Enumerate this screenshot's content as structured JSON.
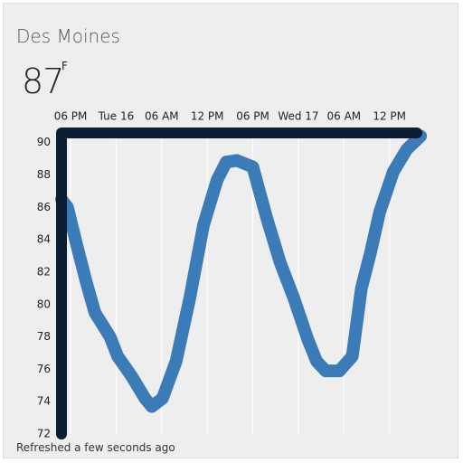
{
  "header": {
    "title": "Des Moines",
    "temperature": "87",
    "unit": "F"
  },
  "chart_data": {
    "type": "line",
    "x": [
      -1.2,
      -0.4,
      0.8,
      2.0,
      3.2,
      4.4,
      5.2,
      6.2,
      8.0,
      9.8,
      10.7,
      12.1,
      13.9,
      15.7,
      17.5,
      19.3,
      20.5,
      21.9,
      24.0,
      25.8,
      27.6,
      29.4,
      31.2,
      32.4,
      33.6,
      35.4,
      37.1,
      38.3,
      39.5,
      40.7,
      42.5,
      44.3,
      46.1
    ],
    "series": [
      {
        "color": "#3b7bb8",
        "values": [
          86.5,
          86.0,
          83.7,
          81.5,
          79.5,
          78.6,
          78.0,
          76.8,
          75.6,
          74.2,
          73.7,
          74.2,
          76.5,
          80.4,
          84.9,
          87.7,
          88.8,
          88.9,
          88.5,
          85.4,
          82.6,
          80.4,
          77.9,
          76.5,
          75.9,
          75.9,
          76.8,
          81.0,
          83.2,
          85.7,
          88.2,
          89.6,
          90.4
        ]
      }
    ],
    "xlim": [
      -1.2,
      46.8
    ],
    "xticks": [
      {
        "value": 0,
        "label": "06 PM"
      },
      {
        "value": 6,
        "label": "Tue 16"
      },
      {
        "value": 12,
        "label": "06 AM"
      },
      {
        "value": 18,
        "label": "12 PM"
      },
      {
        "value": 24,
        "label": "06 PM"
      },
      {
        "value": 30,
        "label": "Wed 17"
      },
      {
        "value": 36,
        "label": "06 AM"
      },
      {
        "value": 42,
        "label": "12 PM"
      }
    ],
    "ylim": [
      72,
      90.6
    ],
    "yticks": [
      72,
      74,
      76,
      78,
      80,
      82,
      84,
      86,
      88,
      90
    ],
    "grid": true
  },
  "footer": "Refreshed a few seconds ago"
}
